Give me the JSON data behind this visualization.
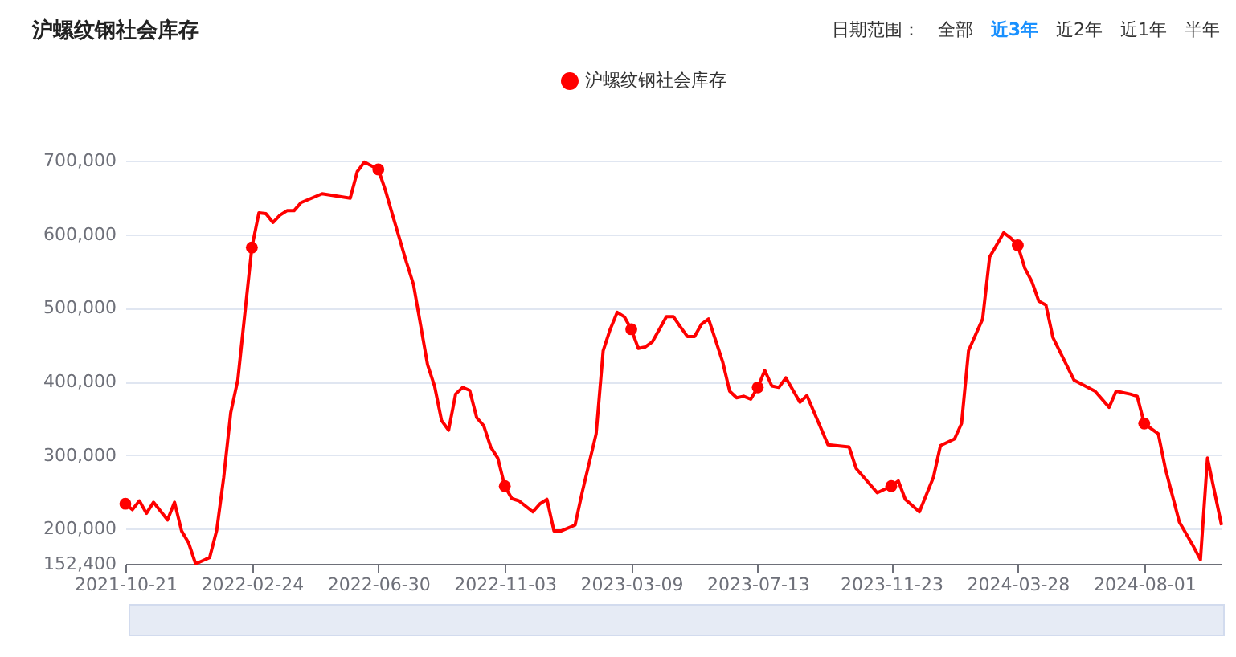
{
  "chart_data": {
    "type": "line",
    "title": "沪螺纹钢社会库存",
    "annotations": [
      "日期范围：",
      "全部",
      "近3年",
      "近2年",
      "近1年",
      "半年"
    ],
    "x": [
      "2021-10-21",
      "2021-10-28",
      "2021-11-04",
      "2021-11-11",
      "2021-11-18",
      "2021-12-02",
      "2021-12-09",
      "2021-12-16",
      "2021-12-23",
      "2021-12-30",
      "2022-01-13",
      "2022-01-20",
      "2022-01-27",
      "2022-02-03",
      "2022-02-10",
      "2022-02-24",
      "2022-03-03",
      "2022-03-10",
      "2022-03-17",
      "2022-03-24",
      "2022-03-31",
      "2022-04-07",
      "2022-04-14",
      "2022-05-05",
      "2022-06-02",
      "2022-06-09",
      "2022-06-16",
      "2022-06-30",
      "2022-07-07",
      "2022-07-14",
      "2022-07-28",
      "2022-08-04",
      "2022-08-18",
      "2022-08-25",
      "2022-09-01",
      "2022-09-08",
      "2022-09-15",
      "2022-09-22",
      "2022-09-29",
      "2022-10-06",
      "2022-10-13",
      "2022-10-20",
      "2022-10-27",
      "2022-11-03",
      "2022-11-10",
      "2022-11-17",
      "2022-12-01",
      "2022-12-08",
      "2022-12-15",
      "2022-12-22",
      "2022-12-29",
      "2023-01-12",
      "2023-01-19",
      "2023-02-02",
      "2023-02-09",
      "2023-02-16",
      "2023-02-23",
      "2023-03-02",
      "2023-03-09",
      "2023-03-16",
      "2023-03-23",
      "2023-03-30",
      "2023-04-06",
      "2023-04-13",
      "2023-04-20",
      "2023-04-27",
      "2023-05-04",
      "2023-05-11",
      "2023-05-18",
      "2023-05-25",
      "2023-06-01",
      "2023-06-08",
      "2023-06-15",
      "2023-06-22",
      "2023-06-29",
      "2023-07-06",
      "2023-07-13",
      "2023-07-20",
      "2023-07-27",
      "2023-08-03",
      "2023-08-10",
      "2023-08-24",
      "2023-08-31",
      "2023-09-21",
      "2023-10-12",
      "2023-10-19",
      "2023-11-09",
      "2023-11-23",
      "2023-11-30",
      "2023-12-07",
      "2023-12-21",
      "2024-01-04",
      "2024-01-11",
      "2024-01-25",
      "2024-02-01",
      "2024-02-08",
      "2024-02-22",
      "2024-02-29",
      "2024-03-14",
      "2024-03-21",
      "2024-03-28",
      "2024-04-04",
      "2024-04-11",
      "2024-04-18",
      "2024-04-25",
      "2024-05-02",
      "2024-05-23",
      "2024-06-13",
      "2024-06-27",
      "2024-07-04",
      "2024-07-18",
      "2024-07-25",
      "2024-08-01",
      "2024-08-15",
      "2024-08-22",
      "2024-09-05",
      "2024-09-19",
      "2024-09-26",
      "2024-10-03",
      "2024-10-17"
    ],
    "series": [
      {
        "name": "沪螺纹钢社会库存",
        "color": "#ff0000",
        "values": [
          234000,
          226000,
          238000,
          221000,
          236000,
          212000,
          236000,
          197000,
          181000,
          152400,
          161000,
          198000,
          270000,
          358000,
          402000,
          582000,
          629000,
          628000,
          616000,
          626000,
          632000,
          632000,
          643000,
          655000,
          649000,
          685000,
          698000,
          688000,
          660000,
          627000,
          562000,
          532000,
          423000,
          394000,
          347000,
          334000,
          383000,
          392000,
          388000,
          351000,
          340000,
          311000,
          296000,
          258000,
          241000,
          238000,
          223000,
          234000,
          240000,
          197000,
          197000,
          205000,
          249000,
          329000,
          442000,
          471000,
          494000,
          488000,
          471000,
          445000,
          447000,
          454000,
          471000,
          488000,
          488000,
          474000,
          461000,
          461000,
          478000,
          485000,
          456000,
          427000,
          387000,
          378000,
          380000,
          376000,
          392000,
          415000,
          394000,
          392000,
          405000,
          372000,
          381000,
          314000,
          311000,
          282000,
          249000,
          258000,
          265000,
          240000,
          223000,
          270000,
          313000,
          322000,
          343000,
          442000,
          485000,
          569000,
          602000,
          595000,
          585000,
          554000,
          536000,
          509000,
          504000,
          460000,
          402000,
          387000,
          365000,
          387000,
          383000,
          380000,
          343000,
          329000,
          282000,
          209000,
          176000,
          158000,
          296000,
          205000
        ]
      }
    ],
    "xlim": [
      "2021-10-21",
      "2024-10-17"
    ],
    "xticks": [
      "2021-10-21",
      "2022-02-24",
      "2022-06-30",
      "2022-11-03",
      "2023-03-09",
      "2023-07-13",
      "2023-11-23",
      "2024-03-28",
      "2024-08-01"
    ],
    "ylim": [
      152400,
      700000
    ],
    "yticks": [
      {
        "value": 152400,
        "label": "152,400"
      },
      {
        "value": 200000,
        "label": "200,000"
      },
      {
        "value": 300000,
        "label": "300,000"
      },
      {
        "value": 400000,
        "label": "400,000"
      },
      {
        "value": 500000,
        "label": "500,000"
      },
      {
        "value": 600000,
        "label": "600,000"
      },
      {
        "value": 700000,
        "label": "700,000"
      }
    ],
    "grid": "y",
    "legend": "top"
  }
}
